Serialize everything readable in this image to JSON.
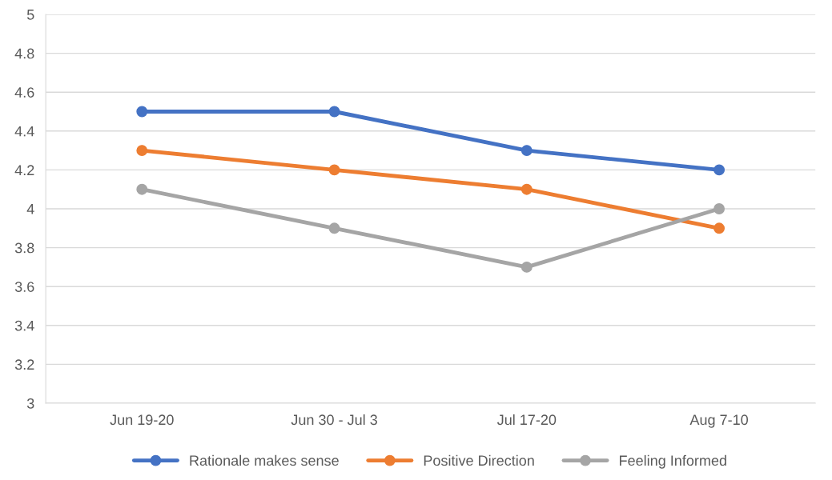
{
  "chart_data": {
    "type": "line",
    "categories": [
      "Jun 19-20",
      "Jun 30 - Jul 3",
      "Jul 17-20",
      "Aug 7-10"
    ],
    "series": [
      {
        "name": "Rationale makes sense",
        "color": "#4472c4",
        "values": [
          4.5,
          4.5,
          4.3,
          4.2
        ]
      },
      {
        "name": "Positive Direction",
        "color": "#ed7d31",
        "values": [
          4.3,
          4.2,
          4.1,
          3.9
        ]
      },
      {
        "name": "Feeling Informed",
        "color": "#a5a5a5",
        "values": [
          4.1,
          3.9,
          3.7,
          4.0
        ]
      }
    ],
    "ylim": [
      3,
      5
    ],
    "yticks": [
      3,
      3.2,
      3.4,
      3.6,
      3.8,
      4,
      4.2,
      4.4,
      4.6,
      4.8,
      5
    ],
    "grid": "y",
    "legend": "bottom",
    "marker": "circle",
    "line_style": "solid"
  }
}
